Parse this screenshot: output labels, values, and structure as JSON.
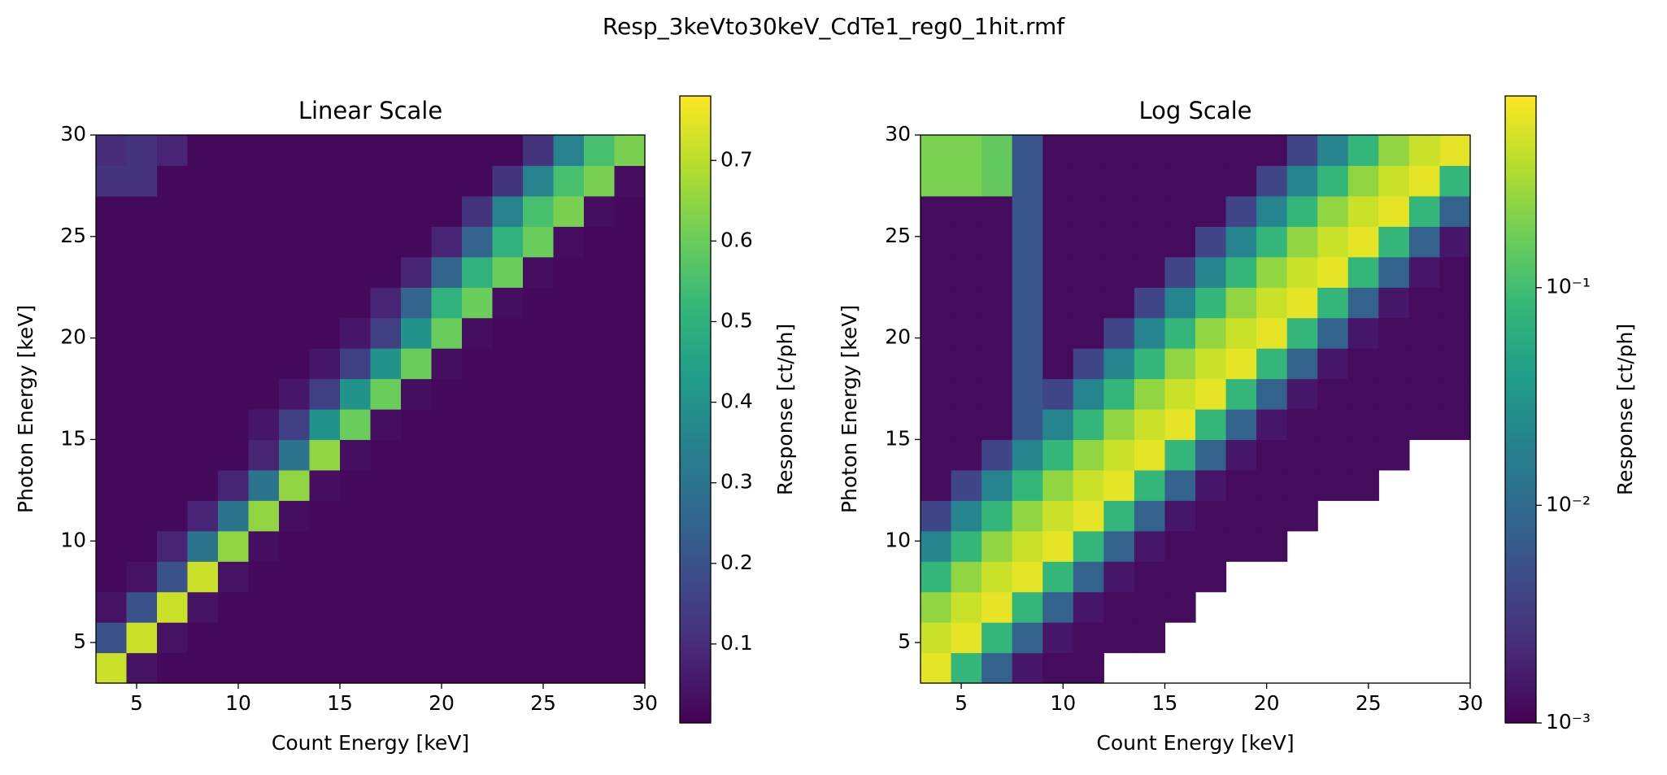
{
  "title": "Resp_3keVto30keV_CdTe1_reg0_1hit.rmf",
  "chart_data": [
    {
      "type": "heatmap",
      "title": "Linear Scale",
      "x_label": "Count Energy [keV]",
      "y_label": "Photon Energy [keV]",
      "xlim": [
        3,
        30
      ],
      "ylim": [
        3,
        30
      ],
      "xticks": [
        5,
        10,
        15,
        20,
        25,
        30
      ],
      "yticks": [
        5,
        10,
        15,
        20,
        25,
        30
      ],
      "xbins": [
        3,
        4.5,
        6,
        7.5,
        9,
        10.5,
        12,
        13.5,
        15,
        16.5,
        18,
        19.5,
        21,
        22.5,
        24,
        25.5,
        27,
        28.5,
        30
      ],
      "ybins": [
        3,
        4.5,
        6,
        7.5,
        9,
        10.5,
        12,
        13.5,
        15,
        16.5,
        18,
        19.5,
        21,
        22.5,
        24,
        25.5,
        27,
        28.5,
        30
      ],
      "colormap": "viridis",
      "colorbar": {
        "label": "Response [ct/ph]",
        "scale": "linear",
        "lim": [
          0.002,
          0.78
        ],
        "ticks": [
          0.1,
          0.2,
          0.3,
          0.4,
          0.5,
          0.6,
          0.7
        ]
      },
      "z": [
        [
          0.72,
          0.04,
          0.02,
          0.02,
          0.02,
          0.02,
          0.02,
          0.02,
          0.02,
          0.02,
          0.02,
          0.02,
          0.02,
          0.02,
          0.02,
          0.02,
          0.02,
          0.02
        ],
        [
          0.2,
          0.72,
          0.04,
          0.02,
          0.02,
          0.02,
          0.02,
          0.02,
          0.02,
          0.02,
          0.02,
          0.02,
          0.02,
          0.02,
          0.02,
          0.02,
          0.02,
          0.02
        ],
        [
          0.04,
          0.2,
          0.72,
          0.04,
          0.02,
          0.02,
          0.02,
          0.02,
          0.02,
          0.02,
          0.02,
          0.02,
          0.02,
          0.02,
          0.02,
          0.02,
          0.02,
          0.02
        ],
        [
          0.02,
          0.04,
          0.2,
          0.72,
          0.04,
          0.02,
          0.02,
          0.02,
          0.02,
          0.02,
          0.02,
          0.02,
          0.02,
          0.02,
          0.02,
          0.02,
          0.02,
          0.02
        ],
        [
          0.02,
          0.02,
          0.08,
          0.3,
          0.65,
          0.03,
          0.02,
          0.02,
          0.02,
          0.02,
          0.02,
          0.02,
          0.02,
          0.02,
          0.02,
          0.02,
          0.02,
          0.02
        ],
        [
          0.02,
          0.02,
          0.02,
          0.08,
          0.3,
          0.65,
          0.03,
          0.02,
          0.02,
          0.02,
          0.02,
          0.02,
          0.02,
          0.02,
          0.02,
          0.02,
          0.02,
          0.02
        ],
        [
          0.02,
          0.02,
          0.02,
          0.02,
          0.08,
          0.3,
          0.65,
          0.03,
          0.02,
          0.02,
          0.02,
          0.02,
          0.02,
          0.02,
          0.02,
          0.02,
          0.02,
          0.02
        ],
        [
          0.02,
          0.02,
          0.02,
          0.02,
          0.02,
          0.08,
          0.3,
          0.65,
          0.03,
          0.02,
          0.02,
          0.02,
          0.02,
          0.02,
          0.02,
          0.02,
          0.02,
          0.02
        ],
        [
          0.02,
          0.02,
          0.02,
          0.02,
          0.02,
          0.05,
          0.15,
          0.4,
          0.6,
          0.03,
          0.02,
          0.02,
          0.02,
          0.02,
          0.02,
          0.02,
          0.02,
          0.02
        ],
        [
          0.02,
          0.02,
          0.02,
          0.02,
          0.02,
          0.02,
          0.05,
          0.15,
          0.4,
          0.6,
          0.03,
          0.02,
          0.02,
          0.02,
          0.02,
          0.02,
          0.02,
          0.02
        ],
        [
          0.02,
          0.02,
          0.02,
          0.02,
          0.02,
          0.02,
          0.02,
          0.05,
          0.15,
          0.4,
          0.6,
          0.03,
          0.02,
          0.02,
          0.02,
          0.02,
          0.02,
          0.02
        ],
        [
          0.02,
          0.02,
          0.02,
          0.02,
          0.02,
          0.02,
          0.02,
          0.02,
          0.05,
          0.15,
          0.4,
          0.6,
          0.03,
          0.02,
          0.02,
          0.02,
          0.02,
          0.02
        ],
        [
          0.02,
          0.02,
          0.02,
          0.02,
          0.02,
          0.02,
          0.02,
          0.02,
          0.02,
          0.08,
          0.25,
          0.5,
          0.6,
          0.03,
          0.02,
          0.02,
          0.02,
          0.02
        ],
        [
          0.02,
          0.02,
          0.02,
          0.02,
          0.02,
          0.02,
          0.02,
          0.02,
          0.02,
          0.02,
          0.08,
          0.25,
          0.5,
          0.6,
          0.03,
          0.02,
          0.02,
          0.02
        ],
        [
          0.02,
          0.02,
          0.02,
          0.02,
          0.02,
          0.02,
          0.02,
          0.02,
          0.02,
          0.02,
          0.02,
          0.08,
          0.25,
          0.5,
          0.6,
          0.03,
          0.02,
          0.02
        ],
        [
          0.02,
          0.02,
          0.02,
          0.02,
          0.02,
          0.02,
          0.02,
          0.02,
          0.02,
          0.02,
          0.02,
          0.02,
          0.12,
          0.35,
          0.55,
          0.62,
          0.03,
          0.02
        ],
        [
          0.12,
          0.12,
          0.02,
          0.02,
          0.02,
          0.02,
          0.02,
          0.02,
          0.02,
          0.02,
          0.02,
          0.02,
          0.02,
          0.12,
          0.35,
          0.55,
          0.62,
          0.03
        ],
        [
          0.1,
          0.12,
          0.08,
          0.02,
          0.02,
          0.02,
          0.02,
          0.02,
          0.02,
          0.02,
          0.02,
          0.02,
          0.02,
          0.02,
          0.12,
          0.35,
          0.55,
          0.62
        ]
      ]
    },
    {
      "type": "heatmap",
      "title": "Log Scale",
      "x_label": "Count Energy [keV]",
      "y_label": "Photon Energy [keV]",
      "xlim": [
        3,
        30
      ],
      "ylim": [
        3,
        30
      ],
      "xticks": [
        5,
        10,
        15,
        20,
        25,
        30
      ],
      "yticks": [
        5,
        10,
        15,
        20,
        25,
        30
      ],
      "xbins": [
        3,
        4.5,
        6,
        7.5,
        9,
        10.5,
        12,
        13.5,
        15,
        16.5,
        18,
        19.5,
        21,
        22.5,
        24,
        25.5,
        27,
        28.5,
        30
      ],
      "ybins": [
        3,
        4.5,
        6,
        7.5,
        9,
        10.5,
        12,
        13.5,
        15,
        16.5,
        18,
        19.5,
        21,
        22.5,
        24,
        25.5,
        27,
        28.5,
        30
      ],
      "colormap": "viridis",
      "colorbar": {
        "label": "Response [ct/ph]",
        "scale": "log",
        "lim": [
          0.001,
          0.76
        ],
        "ticks": [
          {
            "value": 0.001,
            "label": "10⁻³"
          },
          {
            "value": 0.01,
            "label": "10⁻²"
          },
          {
            "value": 0.1,
            "label": "10⁻¹"
          }
        ]
      },
      "z": [
        [
          0.6,
          0.08,
          0.008,
          0.0015,
          0.0012,
          0.0012,
          null,
          null,
          null,
          null,
          null,
          null,
          null,
          null,
          null,
          null,
          null,
          null
        ],
        [
          0.45,
          0.6,
          0.08,
          0.008,
          0.0015,
          0.0012,
          0.0012,
          0.0012,
          null,
          null,
          null,
          null,
          null,
          null,
          null,
          null,
          null,
          null
        ],
        [
          0.25,
          0.45,
          0.6,
          0.08,
          0.008,
          0.0015,
          0.0012,
          0.0012,
          0.0012,
          null,
          null,
          null,
          null,
          null,
          null,
          null,
          null,
          null
        ],
        [
          0.08,
          0.25,
          0.45,
          0.6,
          0.08,
          0.008,
          0.0015,
          0.0012,
          0.0012,
          0.0012,
          null,
          null,
          null,
          null,
          null,
          null,
          null,
          null
        ],
        [
          0.02,
          0.08,
          0.25,
          0.45,
          0.6,
          0.08,
          0.008,
          0.0015,
          0.0012,
          0.0012,
          0.0012,
          0.0012,
          null,
          null,
          null,
          null,
          null,
          null
        ],
        [
          0.004,
          0.02,
          0.08,
          0.25,
          0.45,
          0.6,
          0.08,
          0.008,
          0.0015,
          0.0012,
          0.0012,
          0.0012,
          0.0012,
          null,
          null,
          null,
          null,
          null
        ],
        [
          0.0012,
          0.004,
          0.02,
          0.08,
          0.25,
          0.45,
          0.6,
          0.08,
          0.008,
          0.0015,
          0.0012,
          0.0012,
          0.0012,
          0.0012,
          0.0012,
          null,
          null,
          null
        ],
        [
          0.0012,
          0.0012,
          0.004,
          0.02,
          0.08,
          0.25,
          0.45,
          0.6,
          0.08,
          0.008,
          0.0015,
          0.0012,
          0.0012,
          0.0012,
          0.0012,
          0.0012,
          null,
          null
        ],
        [
          0.0012,
          0.0012,
          0.0012,
          0.006,
          0.02,
          0.08,
          0.25,
          0.45,
          0.6,
          0.08,
          0.008,
          0.0015,
          0.0012,
          0.0012,
          0.0012,
          0.0012,
          0.0012,
          0.0012
        ],
        [
          0.0012,
          0.0012,
          0.0012,
          0.006,
          0.004,
          0.02,
          0.08,
          0.25,
          0.45,
          0.6,
          0.08,
          0.008,
          0.0015,
          0.0012,
          0.0012,
          0.0012,
          0.0012,
          0.0012
        ],
        [
          0.0012,
          0.0012,
          0.0012,
          0.006,
          0.0012,
          0.004,
          0.02,
          0.08,
          0.25,
          0.45,
          0.6,
          0.08,
          0.008,
          0.0015,
          0.0012,
          0.0012,
          0.0012,
          0.0012
        ],
        [
          0.0012,
          0.0012,
          0.0012,
          0.006,
          0.0012,
          0.0012,
          0.004,
          0.02,
          0.08,
          0.25,
          0.45,
          0.6,
          0.08,
          0.008,
          0.0015,
          0.0012,
          0.0012,
          0.0012
        ],
        [
          0.0012,
          0.0012,
          0.0012,
          0.006,
          0.0012,
          0.0012,
          0.0012,
          0.004,
          0.02,
          0.08,
          0.25,
          0.45,
          0.6,
          0.08,
          0.008,
          0.0015,
          0.0012,
          0.0012
        ],
        [
          0.0012,
          0.0012,
          0.0012,
          0.006,
          0.0012,
          0.0012,
          0.0012,
          0.0012,
          0.004,
          0.02,
          0.08,
          0.25,
          0.45,
          0.6,
          0.08,
          0.008,
          0.0015,
          0.0012
        ],
        [
          0.0012,
          0.0012,
          0.0012,
          0.006,
          0.0012,
          0.0012,
          0.0012,
          0.0012,
          0.0012,
          0.004,
          0.02,
          0.08,
          0.25,
          0.45,
          0.6,
          0.08,
          0.008,
          0.0015
        ],
        [
          0.0012,
          0.0012,
          0.0012,
          0.006,
          0.0012,
          0.0012,
          0.0012,
          0.0012,
          0.0012,
          0.0012,
          0.004,
          0.02,
          0.08,
          0.25,
          0.45,
          0.6,
          0.08,
          0.008
        ],
        [
          0.2,
          0.2,
          0.15,
          0.006,
          0.0012,
          0.0012,
          0.0012,
          0.0012,
          0.0012,
          0.0012,
          0.0012,
          0.004,
          0.02,
          0.08,
          0.25,
          0.45,
          0.6,
          0.08
        ],
        [
          0.2,
          0.2,
          0.15,
          0.006,
          0.0012,
          0.0012,
          0.0012,
          0.0012,
          0.0012,
          0.0012,
          0.0012,
          0.0012,
          0.004,
          0.02,
          0.08,
          0.25,
          0.45,
          0.6
        ]
      ]
    }
  ]
}
